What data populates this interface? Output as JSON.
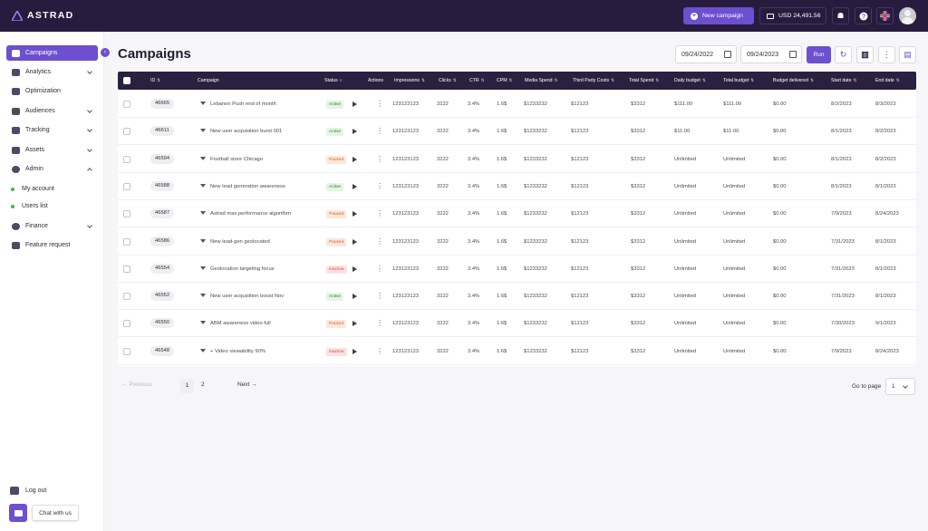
{
  "brand": {
    "name": "ASTRAD"
  },
  "topbar": {
    "new_campaign": "New campaign",
    "balance": "USD 24,491.56"
  },
  "sidebar": {
    "items": [
      {
        "label": "Campaigns",
        "icon": "grid-icon"
      },
      {
        "label": "Analytics",
        "icon": "analytics-icon"
      },
      {
        "label": "Optimization",
        "icon": "optimization-icon"
      },
      {
        "label": "Audiences",
        "icon": "audiences-icon"
      },
      {
        "label": "Tracking",
        "icon": "tracking-icon"
      },
      {
        "label": "Assets",
        "icon": "assets-icon"
      },
      {
        "label": "Admin",
        "icon": "admin-icon"
      },
      {
        "label": "My account",
        "icon": "dot-icon"
      },
      {
        "label": "Users list",
        "icon": "dot-icon"
      },
      {
        "label": "Finance",
        "icon": "finance-icon"
      },
      {
        "label": "Feature request",
        "icon": "feature-icon"
      }
    ],
    "logout": "Log out",
    "chat": "Chat with us"
  },
  "page": {
    "title": "Campaigns",
    "date_from": "09/24/2022",
    "date_to": "09/24/2023",
    "run": "Run"
  },
  "table": {
    "headers": [
      "ID",
      "Campaign",
      "Status",
      "Actions",
      "Impressions",
      "Clicks",
      "CTR",
      "CPM",
      "Media Spend",
      "Third Party Costs",
      "Total Spend",
      "Daily budget",
      "Total budget",
      "Budget delivered",
      "Start date",
      "End date"
    ],
    "rows": [
      [
        "46665",
        "Lebanon Push end of month",
        "Active",
        "123123123",
        "3222",
        "3.4%",
        "1.6$",
        "$1233232",
        "$12123",
        "$3312",
        "$111.00",
        "$111.00",
        "$0.00",
        "8/2/2023",
        "8/3/2023"
      ],
      [
        "46611",
        "New user acquisition burst 001",
        "Active",
        "123123123",
        "3222",
        "3.4%",
        "1.6$",
        "$1233232",
        "$12123",
        "$3312",
        "$11.00",
        "$11.00",
        "$0.00",
        "8/1/2023",
        "8/2/2023"
      ],
      [
        "46594",
        "Football store Chicago",
        "Paused",
        "123123123",
        "3222",
        "3.4%",
        "1.6$",
        "$1233232",
        "$12123",
        "$3312",
        "Unlimited",
        "Unlimited",
        "$0.00",
        "8/1/2023",
        "8/2/2023"
      ],
      [
        "46588",
        "New lead generation awareness",
        "Active",
        "123123123",
        "3222",
        "3.4%",
        "1.6$",
        "$1233232",
        "$12123",
        "$3312",
        "Unlimited",
        "Unlimited",
        "$0.00",
        "8/1/2023",
        "8/1/2023"
      ],
      [
        "46587",
        "Astrad max performance algorithm",
        "Paused",
        "123123123",
        "3222",
        "3.4%",
        "1.6$",
        "$1233232",
        "$12123",
        "$3312",
        "Unlimited",
        "Unlimited",
        "$0.00",
        "7/9/2023",
        "8/24/2023"
      ],
      [
        "46586",
        "New lead-gen geolocated",
        "Paused",
        "123123123",
        "3222",
        "3.4%",
        "1.6$",
        "$1233232",
        "$12123",
        "$3312",
        "Unlimited",
        "Unlimited",
        "$0.00",
        "7/31/2023",
        "8/1/2023"
      ],
      [
        "46554",
        "Geolocation targeting focus",
        "Inactive",
        "123123123",
        "3222",
        "3.4%",
        "1.6$",
        "$1233232",
        "$12123",
        "$3312",
        "Unlimited",
        "Unlimited",
        "$0.00",
        "7/31/2023",
        "8/1/2023"
      ],
      [
        "46552",
        "New user acquisition boost Nov",
        "Active",
        "123123123",
        "3222",
        "3.4%",
        "1.6$",
        "$1233232",
        "$12123",
        "$3312",
        "Unlimited",
        "Unlimited",
        "$0.00",
        "7/31/2023",
        "8/1/2023"
      ],
      [
        "46550",
        "ABM awareness video full",
        "Paused",
        "123123123",
        "3222",
        "3.4%",
        "1.6$",
        "$1233232",
        "$12123",
        "$3312",
        "Unlimited",
        "Unlimited",
        "$0.00",
        "7/30/2023",
        "9/1/2023"
      ],
      [
        "46548",
        "+ Video viewability 90%",
        "Inactive",
        "123123123",
        "3222",
        "3.4%",
        "1.6$",
        "$1233232",
        "$12123",
        "$3312",
        "Unlimited",
        "Unlimited",
        "$0.00",
        "7/9/2023",
        "8/24/2023"
      ]
    ]
  },
  "pagination": {
    "previous": "Previous",
    "page1": "1",
    "page2": "2",
    "next": "Next",
    "goto_label": "Go to page",
    "goto_value": "1"
  },
  "colors": {
    "accent": "#6d4fcf",
    "topbar": "#271c3d",
    "active": "#2e7d32",
    "paused": "#d0672a",
    "inactive": "#d24b4b"
  }
}
